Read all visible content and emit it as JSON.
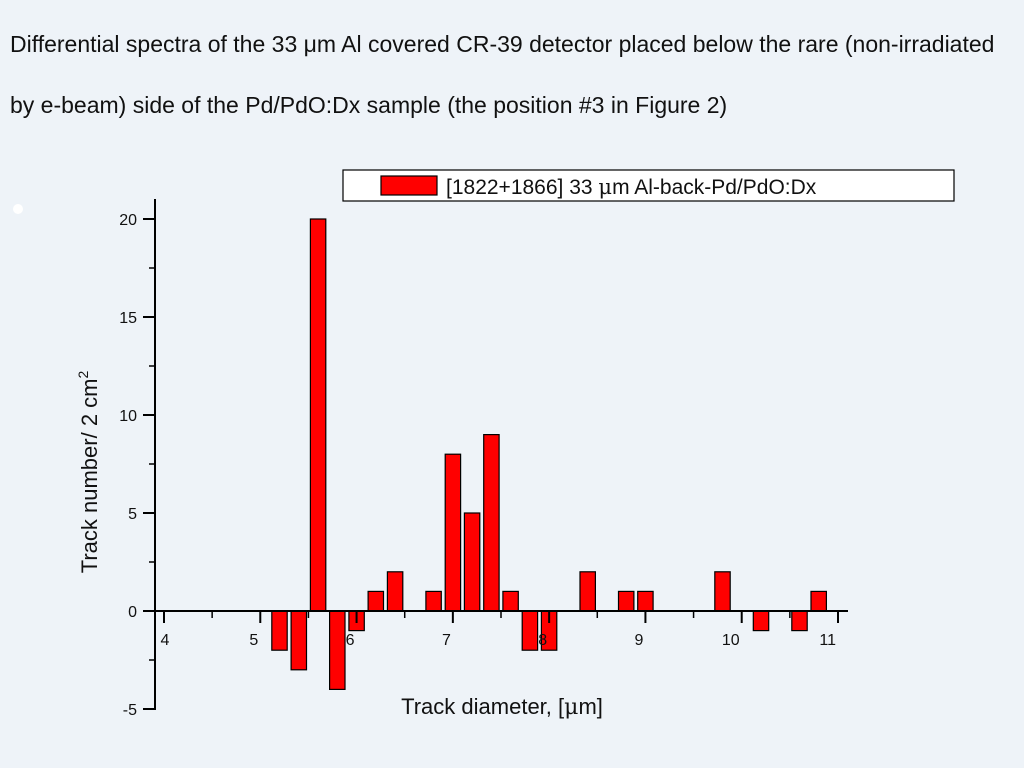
{
  "slide": {
    "title": "Differential spectra of the 33 μm Al covered CR-39 detector placed below the rare (non-irradiated by e-beam) side of the Pd/PdO:Dx sample (the position #3 in Figure 2)"
  },
  "chart_data": {
    "type": "bar",
    "xlabel_prefix": "Track diameter, [",
    "xlabel_mu": "μ",
    "xlabel_suffix": "m]",
    "ylabel": "Track number/ 2 cm",
    "ylabel_sup": "2",
    "xlim": [
      4,
      11
    ],
    "ylim": [
      -5,
      20
    ],
    "x_ticks": [
      4,
      5,
      6,
      7,
      8,
      9,
      10,
      11
    ],
    "y_ticks": [
      -5,
      0,
      5,
      10,
      15,
      20
    ],
    "grid": false,
    "legend_position": "top-right",
    "bar_width": 0.16,
    "bar_color": "#ff0000",
    "series": [
      {
        "name": "[1822+1866] 33 μm Al-back-Pd/PdO:Dx",
        "legend_prefix": "[1822+1866] 33 ",
        "legend_mu": "μ",
        "legend_suffix": "m Al-back-Pd/PdO:Dx",
        "x": [
          5.2,
          5.4,
          5.6,
          5.8,
          6.0,
          6.2,
          6.4,
          6.8,
          7.0,
          7.2,
          7.4,
          7.6,
          7.8,
          8.0,
          8.4,
          8.8,
          9.0,
          9.8,
          10.2,
          10.6,
          10.8
        ],
        "values": [
          -2,
          -3,
          20,
          -4,
          -1,
          1,
          2,
          1,
          8,
          5,
          9,
          1,
          -2,
          -2,
          2,
          1,
          1,
          2,
          -1,
          -1,
          1
        ]
      }
    ]
  }
}
